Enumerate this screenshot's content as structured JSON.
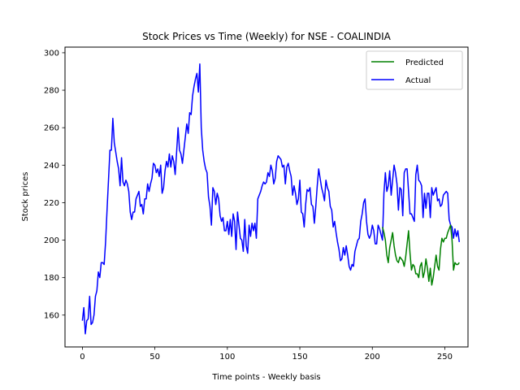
{
  "chart_data": {
    "type": "line",
    "title": "Stock Prices vs Time (Weekly) for NSE - COALINDIA",
    "xlabel": "Time points - Weekly basis",
    "ylabel": "Stock prices",
    "xlim": [
      -12,
      266
    ],
    "ylim": [
      143,
      303
    ],
    "xticks": [
      0,
      50,
      100,
      150,
      200,
      250
    ],
    "yticks": [
      160,
      180,
      200,
      220,
      240,
      260,
      280,
      300
    ],
    "grid": false,
    "legend": "top-right",
    "series": [
      {
        "name": "Predicted",
        "color": "#008000",
        "points": [
          [
            207,
            207
          ],
          [
            208,
            204
          ],
          [
            209,
            200
          ],
          [
            210,
            192
          ],
          [
            211,
            188
          ],
          [
            212,
            196
          ],
          [
            213,
            200
          ],
          [
            214,
            204
          ],
          [
            215,
            197
          ],
          [
            216,
            192
          ],
          [
            217,
            189
          ],
          [
            218,
            188
          ],
          [
            219,
            191
          ],
          [
            220,
            190
          ],
          [
            221,
            189
          ],
          [
            222,
            186
          ],
          [
            223,
            191
          ],
          [
            224,
            198
          ],
          [
            225,
            205
          ],
          [
            226,
            193
          ],
          [
            227,
            184
          ],
          [
            228,
            187
          ],
          [
            229,
            186
          ],
          [
            230,
            182
          ],
          [
            231,
            182
          ],
          [
            232,
            180
          ],
          [
            233,
            186
          ],
          [
            234,
            188
          ],
          [
            235,
            180
          ],
          [
            236,
            183
          ],
          [
            237,
            190
          ],
          [
            238,
            185
          ],
          [
            239,
            178
          ],
          [
            240,
            185
          ],
          [
            241,
            176
          ],
          [
            242,
            180
          ],
          [
            243,
            186
          ],
          [
            244,
            192
          ],
          [
            245,
            186
          ],
          [
            246,
            184
          ],
          [
            247,
            195
          ],
          [
            248,
            201
          ],
          [
            249,
            199
          ],
          [
            250,
            201
          ],
          [
            251,
            201
          ],
          [
            252,
            204
          ],
          [
            253,
            206
          ],
          [
            254,
            208
          ],
          [
            255,
            200
          ],
          [
            256,
            184
          ],
          [
            257,
            188
          ],
          [
            258,
            187
          ],
          [
            259,
            187
          ],
          [
            260,
            188
          ]
        ]
      },
      {
        "name": "Actual",
        "color": "#0000ff",
        "points": [
          [
            0,
            157
          ],
          [
            1,
            164
          ],
          [
            2,
            150
          ],
          [
            3,
            157
          ],
          [
            4,
            158
          ],
          [
            5,
            170
          ],
          [
            6,
            155
          ],
          [
            7,
            156
          ],
          [
            8,
            160
          ],
          [
            9,
            170
          ],
          [
            10,
            173
          ],
          [
            11,
            183
          ],
          [
            12,
            180
          ],
          [
            13,
            188
          ],
          [
            14,
            188
          ],
          [
            15,
            187
          ],
          [
            16,
            199
          ],
          [
            17,
            216
          ],
          [
            18,
            232
          ],
          [
            19,
            248
          ],
          [
            20,
            248
          ],
          [
            21,
            265
          ],
          [
            22,
            252
          ],
          [
            23,
            247
          ],
          [
            24,
            242
          ],
          [
            25,
            238
          ],
          [
            26,
            229
          ],
          [
            27,
            244
          ],
          [
            28,
            231
          ],
          [
            29,
            229
          ],
          [
            30,
            232
          ],
          [
            31,
            230
          ],
          [
            32,
            226
          ],
          [
            33,
            215
          ],
          [
            34,
            211
          ],
          [
            35,
            215
          ],
          [
            36,
            215
          ],
          [
            37,
            222
          ],
          [
            38,
            224
          ],
          [
            39,
            226
          ],
          [
            40,
            218
          ],
          [
            41,
            219
          ],
          [
            42,
            214
          ],
          [
            43,
            222
          ],
          [
            44,
            222
          ],
          [
            45,
            230
          ],
          [
            46,
            226
          ],
          [
            47,
            230
          ],
          [
            48,
            233
          ],
          [
            49,
            241
          ],
          [
            50,
            240
          ],
          [
            51,
            236
          ],
          [
            52,
            238
          ],
          [
            53,
            234
          ],
          [
            54,
            240
          ],
          [
            55,
            225
          ],
          [
            56,
            228
          ],
          [
            57,
            237
          ],
          [
            58,
            242
          ],
          [
            59,
            239
          ],
          [
            60,
            246
          ],
          [
            61,
            239
          ],
          [
            62,
            245
          ],
          [
            63,
            242
          ],
          [
            64,
            235
          ],
          [
            65,
            247
          ],
          [
            66,
            260
          ],
          [
            67,
            248
          ],
          [
            68,
            246
          ],
          [
            69,
            241
          ],
          [
            70,
            248
          ],
          [
            71,
            255
          ],
          [
            72,
            262
          ],
          [
            73,
            257
          ],
          [
            74,
            268
          ],
          [
            75,
            267
          ],
          [
            76,
            277
          ],
          [
            77,
            282
          ],
          [
            78,
            286
          ],
          [
            79,
            289
          ],
          [
            80,
            279
          ],
          [
            81,
            294
          ],
          [
            82,
            260
          ],
          [
            83,
            248
          ],
          [
            84,
            242
          ],
          [
            85,
            238
          ],
          [
            86,
            236
          ],
          [
            87,
            223
          ],
          [
            88,
            218
          ],
          [
            89,
            208
          ],
          [
            90,
            228
          ],
          [
            91,
            226
          ],
          [
            92,
            219
          ],
          [
            93,
            225
          ],
          [
            94,
            222
          ],
          [
            95,
            213
          ],
          [
            96,
            210
          ],
          [
            97,
            212
          ],
          [
            98,
            205
          ],
          [
            99,
            205
          ],
          [
            100,
            210
          ],
          [
            101,
            203
          ],
          [
            102,
            211
          ],
          [
            103,
            202
          ],
          [
            104,
            214
          ],
          [
            105,
            210
          ],
          [
            106,
            195
          ],
          [
            107,
            215
          ],
          [
            108,
            208
          ],
          [
            109,
            201
          ],
          [
            110,
            200
          ],
          [
            111,
            194
          ],
          [
            112,
            211
          ],
          [
            113,
            197
          ],
          [
            114,
            193
          ],
          [
            115,
            208
          ],
          [
            116,
            202
          ],
          [
            117,
            209
          ],
          [
            118,
            205
          ],
          [
            119,
            209
          ],
          [
            120,
            201
          ],
          [
            121,
            222
          ],
          [
            122,
            224
          ],
          [
            123,
            226
          ],
          [
            124,
            229
          ],
          [
            125,
            231
          ],
          [
            126,
            230
          ],
          [
            127,
            231
          ],
          [
            128,
            236
          ],
          [
            129,
            234
          ],
          [
            130,
            240
          ],
          [
            131,
            237
          ],
          [
            132,
            230
          ],
          [
            133,
            233
          ],
          [
            134,
            242
          ],
          [
            135,
            245
          ],
          [
            136,
            244
          ],
          [
            137,
            243
          ],
          [
            138,
            239
          ],
          [
            139,
            240
          ],
          [
            140,
            230
          ],
          [
            141,
            239
          ],
          [
            142,
            241
          ],
          [
            143,
            237
          ],
          [
            144,
            234
          ],
          [
            145,
            224
          ],
          [
            146,
            229
          ],
          [
            147,
            225
          ],
          [
            148,
            219
          ],
          [
            149,
            222
          ],
          [
            150,
            232
          ],
          [
            151,
            215
          ],
          [
            152,
            214
          ],
          [
            153,
            207
          ],
          [
            154,
            219
          ],
          [
            155,
            227
          ],
          [
            156,
            226
          ],
          [
            157,
            228
          ],
          [
            158,
            219
          ],
          [
            159,
            218
          ],
          [
            160,
            209
          ],
          [
            161,
            218
          ],
          [
            162,
            229
          ],
          [
            163,
            238
          ],
          [
            164,
            233
          ],
          [
            165,
            228
          ],
          [
            166,
            225
          ],
          [
            167,
            221
          ],
          [
            168,
            232
          ],
          [
            169,
            228
          ],
          [
            170,
            226
          ],
          [
            171,
            218
          ],
          [
            172,
            216
          ],
          [
            173,
            207
          ],
          [
            174,
            210
          ],
          [
            175,
            204
          ],
          [
            176,
            199
          ],
          [
            177,
            195
          ],
          [
            178,
            189
          ],
          [
            179,
            190
          ],
          [
            180,
            196
          ],
          [
            181,
            192
          ],
          [
            182,
            197
          ],
          [
            183,
            192
          ],
          [
            184,
            186
          ],
          [
            185,
            184
          ],
          [
            186,
            187
          ],
          [
            187,
            186
          ],
          [
            188,
            194
          ],
          [
            189,
            197
          ],
          [
            190,
            200
          ],
          [
            191,
            201
          ],
          [
            192,
            210
          ],
          [
            193,
            214
          ],
          [
            194,
            220
          ],
          [
            195,
            222
          ],
          [
            196,
            210
          ],
          [
            197,
            203
          ],
          [
            198,
            201
          ],
          [
            199,
            203
          ],
          [
            200,
            208
          ],
          [
            201,
            205
          ],
          [
            202,
            198
          ],
          [
            203,
            198
          ],
          [
            204,
            208
          ],
          [
            205,
            206
          ],
          [
            206,
            203
          ],
          [
            207,
            200
          ],
          [
            208,
            225
          ],
          [
            209,
            236
          ],
          [
            210,
            226
          ],
          [
            211,
            229
          ],
          [
            212,
            237
          ],
          [
            213,
            224
          ],
          [
            214,
            232
          ],
          [
            215,
            240
          ],
          [
            216,
            236
          ],
          [
            217,
            230
          ],
          [
            218,
            216
          ],
          [
            219,
            228
          ],
          [
            220,
            227
          ],
          [
            221,
            213
          ],
          [
            222,
            236
          ],
          [
            223,
            238
          ],
          [
            224,
            238
          ],
          [
            225,
            226
          ],
          [
            226,
            214
          ],
          [
            227,
            214
          ],
          [
            228,
            212
          ],
          [
            229,
            210
          ],
          [
            230,
            235
          ],
          [
            231,
            240
          ],
          [
            232,
            232
          ],
          [
            233,
            231
          ],
          [
            234,
            229
          ],
          [
            235,
            212
          ],
          [
            236,
            225
          ],
          [
            237,
            217
          ],
          [
            238,
            225
          ],
          [
            239,
            225
          ],
          [
            240,
            212
          ],
          [
            241,
            228
          ],
          [
            242,
            224
          ],
          [
            243,
            226
          ],
          [
            244,
            228
          ],
          [
            245,
            221
          ],
          [
            246,
            222
          ],
          [
            247,
            218
          ],
          [
            248,
            219
          ],
          [
            249,
            224
          ],
          [
            250,
            225
          ],
          [
            251,
            226
          ],
          [
            252,
            225
          ],
          [
            253,
            211
          ],
          [
            254,
            208
          ],
          [
            255,
            207
          ],
          [
            256,
            201
          ],
          [
            257,
            206
          ],
          [
            258,
            202
          ],
          [
            259,
            205
          ],
          [
            260,
            199
          ]
        ]
      }
    ]
  }
}
